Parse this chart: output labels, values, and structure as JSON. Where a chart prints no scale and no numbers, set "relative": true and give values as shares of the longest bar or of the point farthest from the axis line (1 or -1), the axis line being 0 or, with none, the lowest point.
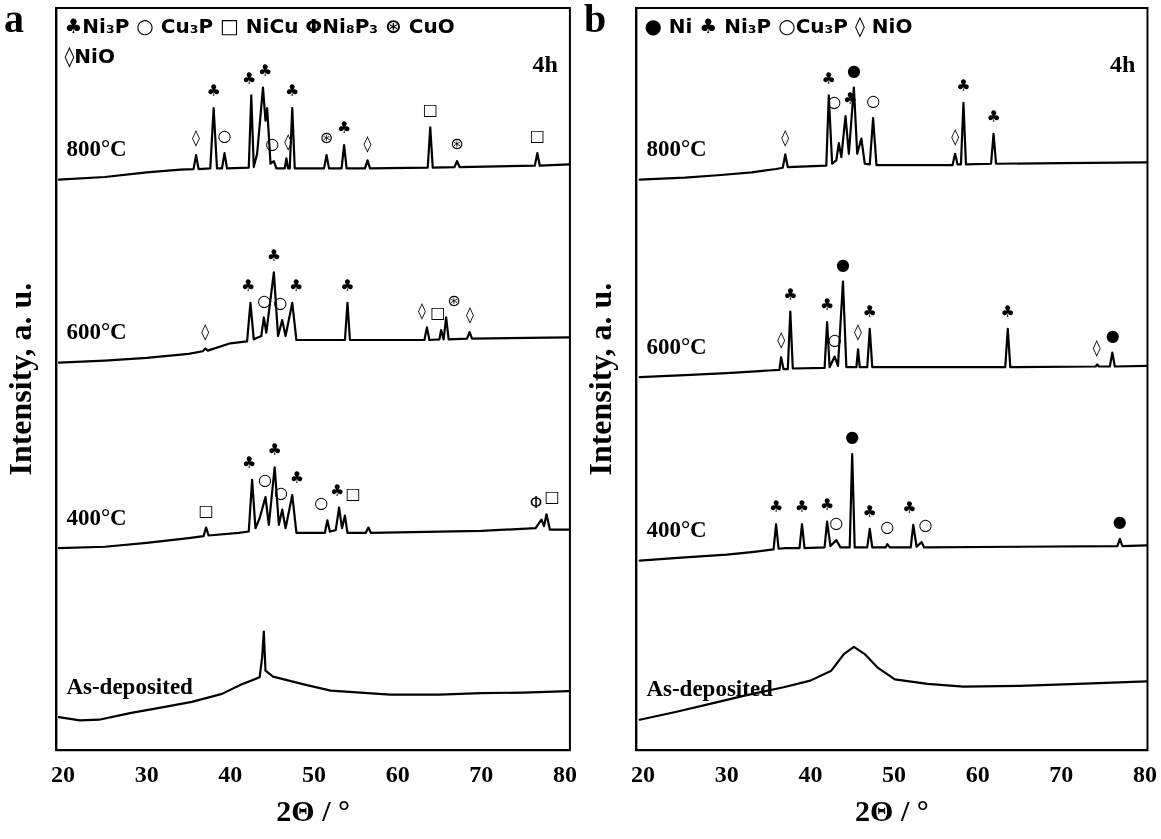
{
  "chart_data": [
    {
      "type": "line",
      "title": "a",
      "subtitle": "4h",
      "xlabel": "2Θ / °",
      "ylabel": "Intensity, a. u.",
      "relative": true,
      "grid": false,
      "legend": false,
      "xlim": [
        19.2,
        80.6
      ],
      "xticks": [
        20,
        30,
        40,
        50,
        60,
        70,
        80
      ],
      "series": [
        {
          "name": "800°C",
          "color": "#000000",
          "x": [
            19.5,
            25,
            30,
            34,
            35.6,
            35.9,
            36.2,
            37.6,
            38.0,
            38.4,
            39.0,
            39.3,
            39.6,
            42.2,
            42.5,
            42.8,
            43.2,
            43.9,
            44.2,
            44.4,
            44.8,
            45.2,
            45.5,
            46.5,
            46.7,
            46.9,
            47.1,
            47.4,
            47.7,
            51.2,
            51.5,
            51.8,
            53.3,
            53.6,
            53.9,
            56.1,
            56.4,
            56.7,
            63.6,
            63.9,
            64.2,
            66.8,
            67.1,
            67.4,
            76.4,
            76.7,
            77.0,
            80.5
          ],
          "values": [
            0.861,
            0.865,
            0.872,
            0.876,
            0.877,
            0.898,
            0.877,
            0.878,
            0.969,
            0.878,
            0.878,
            0.901,
            0.878,
            0.879,
            0.988,
            0.88,
            0.9,
            1.0,
            0.95,
            0.969,
            0.885,
            0.889,
            0.878,
            0.878,
            0.893,
            0.878,
            0.878,
            0.969,
            0.878,
            0.878,
            0.898,
            0.878,
            0.878,
            0.913,
            0.878,
            0.878,
            0.89,
            0.878,
            0.879,
            0.94,
            0.879,
            0.88,
            0.889,
            0.88,
            0.882,
            0.901,
            0.882,
            0.884
          ]
        },
        {
          "name": "600°C",
          "color": "#000000",
          "x": [
            19.5,
            25,
            30,
            35,
            36.7,
            37.0,
            37.3,
            40,
            42.0,
            42.4,
            42.8,
            43.7,
            44.0,
            44.3,
            45.2,
            45.7,
            46.2,
            46.6,
            47.4,
            47.9,
            53.7,
            54.0,
            54.3,
            63.2,
            63.5,
            63.8,
            65.0,
            65.2,
            65.5,
            65.8,
            66.1,
            68.3,
            68.6,
            68.9,
            80.5
          ],
          "values": [
            0.585,
            0.588,
            0.592,
            0.598,
            0.602,
            0.606,
            0.603,
            0.614,
            0.617,
            0.675,
            0.62,
            0.625,
            0.653,
            0.63,
            0.721,
            0.625,
            0.649,
            0.625,
            0.675,
            0.619,
            0.619,
            0.675,
            0.619,
            0.619,
            0.638,
            0.619,
            0.62,
            0.634,
            0.62,
            0.653,
            0.62,
            0.621,
            0.631,
            0.621,
            0.623
          ]
        },
        {
          "name": "400°C",
          "color": "#000000",
          "x": [
            19.5,
            25,
            30,
            35,
            36.8,
            37.1,
            37.4,
            41,
            42.2,
            42.6,
            43.0,
            43.5,
            44.2,
            44.6,
            45.3,
            45.8,
            46.2,
            46.6,
            47.4,
            47.9,
            51.3,
            51.6,
            51.9,
            52.6,
            53.0,
            53.35,
            53.7,
            54.0,
            56.2,
            56.5,
            56.8,
            70,
            76.5,
            77.2,
            77.5,
            77.8,
            78.2,
            80.5
          ],
          "values": [
            0.305,
            0.307,
            0.313,
            0.32,
            0.323,
            0.336,
            0.324,
            0.328,
            0.33,
            0.408,
            0.335,
            0.35,
            0.382,
            0.34,
            0.427,
            0.34,
            0.363,
            0.335,
            0.385,
            0.328,
            0.328,
            0.347,
            0.33,
            0.332,
            0.366,
            0.335,
            0.354,
            0.328,
            0.328,
            0.336,
            0.328,
            0.331,
            0.335,
            0.348,
            0.338,
            0.356,
            0.333,
            0.333
          ]
        },
        {
          "name": "As-deposited",
          "color": "#000000",
          "x": [
            19.5,
            22,
            24.3,
            28,
            32,
            35.4,
            39,
            41.3,
            43.5,
            43.8,
            44.0,
            44.2,
            45.1,
            47,
            48.9,
            52,
            59.1,
            65,
            70,
            75,
            80.5
          ],
          "values": [
            0.05,
            0.045,
            0.046,
            0.056,
            0.065,
            0.073,
            0.085,
            0.099,
            0.11,
            0.14,
            0.179,
            0.12,
            0.111,
            0.105,
            0.099,
            0.09,
            0.084,
            0.084,
            0.086,
            0.087,
            0.089
          ]
        }
      ],
      "annotations": [
        "♣Ni₃P ○ Cu₃P □ NiCu ΦNi₈P₃ ⊛ CuO",
        "◊NiO",
        {
          "text": "◊",
          "x": 35.9,
          "y": 0.898
        },
        {
          "text": "♣",
          "x": 38.0,
          "y": 0.969
        },
        {
          "text": "○",
          "x": 39.3,
          "y": 0.901
        },
        {
          "text": "♣",
          "x": 42.5,
          "y": 0.988
        },
        {
          "text": "♣",
          "x": 43.9,
          "y": 1.0
        },
        {
          "text": "○",
          "x": 45.2,
          "y": 0.889
        },
        {
          "text": "◊",
          "x": 46.7,
          "y": 0.893
        },
        {
          "text": "♣",
          "x": 47.4,
          "y": 0.969
        },
        {
          "text": "⊛",
          "x": 51.5,
          "y": 0.898
        },
        {
          "text": "♣",
          "x": 53.6,
          "y": 0.913
        },
        {
          "text": "◊",
          "x": 56.4,
          "y": 0.89
        },
        {
          "text": "□",
          "x": 63.9,
          "y": 0.94
        },
        {
          "text": "⊛",
          "x": 67.1,
          "y": 0.889
        },
        {
          "text": "□",
          "x": 76.7,
          "y": 0.901
        },
        {
          "text": "◊",
          "x": 37.0,
          "y": 0.606
        },
        {
          "text": "♣",
          "x": 42.4,
          "y": 0.675
        },
        {
          "text": "○",
          "x": 44.0,
          "y": 0.653
        },
        {
          "text": "♣",
          "x": 45.2,
          "y": 0.721
        },
        {
          "text": "○",
          "x": 46.2,
          "y": 0.649
        },
        {
          "text": "♣",
          "x": 47.4,
          "y": 0.675
        },
        {
          "text": "♣",
          "x": 54.0,
          "y": 0.675
        },
        {
          "text": "◊",
          "x": 63.5,
          "y": 0.638
        },
        {
          "text": "□",
          "x": 65.2,
          "y": 0.634
        },
        {
          "text": "⊛",
          "x": 65.8,
          "y": 0.653
        },
        {
          "text": "◊",
          "x": 68.6,
          "y": 0.631
        },
        {
          "text": "□",
          "x": 37.1,
          "y": 0.336
        },
        {
          "text": "♣",
          "x": 42.6,
          "y": 0.408
        },
        {
          "text": "○",
          "x": 44.2,
          "y": 0.382
        },
        {
          "text": "♣",
          "x": 45.3,
          "y": 0.427
        },
        {
          "text": "○",
          "x": 46.2,
          "y": 0.363
        },
        {
          "text": "♣",
          "x": 47.4,
          "y": 0.385
        },
        {
          "text": "○",
          "x": 51.6,
          "y": 0.347
        },
        {
          "text": "♣",
          "x": 53.0,
          "y": 0.366
        },
        {
          "text": "□",
          "x": 53.7,
          "y": 0.354
        },
        {
          "text": "Φ",
          "x": 77.2,
          "y": 0.348
        },
        {
          "text": "□",
          "x": 77.8,
          "y": 0.356
        }
      ]
    },
    {
      "type": "line",
      "title": "b",
      "subtitle": "4h",
      "xlabel": "2Θ / °",
      "ylabel": "Intensity, a. u.",
      "relative": true,
      "grid": false,
      "legend": false,
      "xlim": [
        19.2,
        80.3
      ],
      "xticks": [
        20,
        30,
        40,
        50,
        60,
        70,
        80
      ],
      "series": [
        {
          "name": "800°C",
          "color": "#000000",
          "x": [
            19.6,
            25,
            29.3,
            33,
            35.9,
            36.7,
            37.0,
            37.3,
            41.9,
            42.2,
            42.6,
            43.1,
            43.4,
            43.7,
            44.2,
            44.6,
            45.2,
            45.6,
            46.1,
            46.5,
            47.1,
            47.5,
            47.9,
            57.0,
            57.3,
            57.6,
            58.0,
            58.3,
            58.6,
            61.6,
            61.9,
            62.2,
            70,
            80.2
          ],
          "values": [
            0.861,
            0.864,
            0.868,
            0.872,
            0.877,
            0.879,
            0.899,
            0.88,
            0.882,
            0.988,
            0.885,
            0.89,
            0.916,
            0.895,
            0.957,
            0.9,
            1.0,
            0.9,
            0.923,
            0.885,
            0.884,
            0.954,
            0.883,
            0.883,
            0.9,
            0.884,
            0.884,
            0.977,
            0.884,
            0.885,
            0.93,
            0.885,
            0.886,
            0.887
          ]
        },
        {
          "name": "600°C",
          "color": "#000000",
          "x": [
            19.6,
            25,
            30,
            35,
            36.3,
            36.5,
            36.8,
            37.3,
            37.6,
            37.9,
            41.7,
            42.0,
            42.3,
            42.9,
            43.3,
            43.9,
            44.3,
            45.5,
            45.7,
            45.9,
            46.8,
            47.1,
            47.4,
            63.3,
            63.6,
            63.9,
            74.1,
            74.3,
            74.5,
            75.8,
            76.1,
            76.4,
            80.2
          ],
          "values": [
            0.563,
            0.566,
            0.569,
            0.573,
            0.574,
            0.593,
            0.575,
            0.575,
            0.662,
            0.576,
            0.577,
            0.646,
            0.578,
            0.594,
            0.58,
            0.707,
            0.578,
            0.578,
            0.605,
            0.578,
            0.578,
            0.636,
            0.578,
            0.578,
            0.636,
            0.578,
            0.579,
            0.582,
            0.579,
            0.579,
            0.6,
            0.579,
            0.58
          ]
        },
        {
          "name": "400°C",
          "color": "#000000",
          "x": [
            19.6,
            25,
            30,
            33,
            35.6,
            35.9,
            36.2,
            37,
            38.7,
            39.0,
            39.3,
            41.7,
            42.0,
            42.4,
            43.1,
            43.6,
            44.7,
            45.0,
            45.3,
            46.8,
            47.1,
            47.4,
            49.0,
            49.2,
            49.5,
            52.0,
            52.3,
            52.7,
            53.3,
            53.6,
            65,
            76.7,
            77.0,
            77.3,
            80.2
          ],
          "values": [
            0.286,
            0.291,
            0.295,
            0.299,
            0.303,
            0.341,
            0.304,
            0.305,
            0.305,
            0.341,
            0.305,
            0.306,
            0.345,
            0.308,
            0.317,
            0.306,
            0.306,
            0.447,
            0.306,
            0.306,
            0.334,
            0.306,
            0.306,
            0.311,
            0.306,
            0.306,
            0.34,
            0.307,
            0.314,
            0.306,
            0.307,
            0.308,
            0.319,
            0.308,
            0.309
          ]
        },
        {
          "name": "As-deposited",
          "color": "#000000",
          "x": [
            19.6,
            24,
            28,
            32,
            36.8,
            40,
            42.5,
            44,
            45.2,
            46.5,
            48,
            50.1,
            54,
            58.3,
            65,
            72,
            80.2
          ],
          "values": [
            0.046,
            0.058,
            0.07,
            0.082,
            0.095,
            0.105,
            0.12,
            0.145,
            0.156,
            0.145,
            0.125,
            0.107,
            0.1,
            0.096,
            0.097,
            0.1,
            0.104
          ]
        }
      ],
      "annotations": [
        "● Ni ♣ Ni₃P ○Cu₃P ◊ NiO",
        {
          "text": "◊",
          "x": 37.0,
          "y": 0.899
        },
        {
          "text": "♣",
          "x": 42.2,
          "y": 0.988
        },
        {
          "text": "○",
          "x": 43.4,
          "y": 0.916
        },
        {
          "text": "♣",
          "x": 44.2,
          "y": 0.957
        },
        {
          "text": "●",
          "x": 45.2,
          "y": 1.0
        },
        {
          "text": "○",
          "x": 47.5,
          "y": 0.954
        },
        {
          "text": "◊",
          "x": 57.3,
          "y": 0.9
        },
        {
          "text": "♣",
          "x": 58.3,
          "y": 0.977
        },
        {
          "text": "♣",
          "x": 61.9,
          "y": 0.93
        },
        {
          "text": "◊",
          "x": 36.5,
          "y": 0.593
        },
        {
          "text": "♣",
          "x": 37.6,
          "y": 0.662
        },
        {
          "text": "♣",
          "x": 42.0,
          "y": 0.646
        },
        {
          "text": "○",
          "x": 42.9,
          "y": 0.594
        },
        {
          "text": "●",
          "x": 43.9,
          "y": 0.707
        },
        {
          "text": "◊",
          "x": 45.7,
          "y": 0.605
        },
        {
          "text": "♣",
          "x": 47.1,
          "y": 0.636
        },
        {
          "text": "♣",
          "x": 63.6,
          "y": 0.636
        },
        {
          "text": "◊",
          "x": 74.3,
          "y": 0.582
        },
        {
          "text": "●",
          "x": 76.1,
          "y": 0.6
        },
        {
          "text": "♣",
          "x": 35.9,
          "y": 0.341
        },
        {
          "text": "♣",
          "x": 39.0,
          "y": 0.341
        },
        {
          "text": "♣",
          "x": 42.0,
          "y": 0.345
        },
        {
          "text": "○",
          "x": 43.1,
          "y": 0.317
        },
        {
          "text": "●",
          "x": 45.0,
          "y": 0.447
        },
        {
          "text": "♣",
          "x": 47.1,
          "y": 0.334
        },
        {
          "text": "○",
          "x": 49.2,
          "y": 0.311
        },
        {
          "text": "♣",
          "x": 52.3,
          "y": 0.34
        },
        {
          "text": "○",
          "x": 53.3,
          "y": 0.314
        },
        {
          "text": "●",
          "x": 77.0,
          "y": 0.319
        }
      ]
    }
  ]
}
